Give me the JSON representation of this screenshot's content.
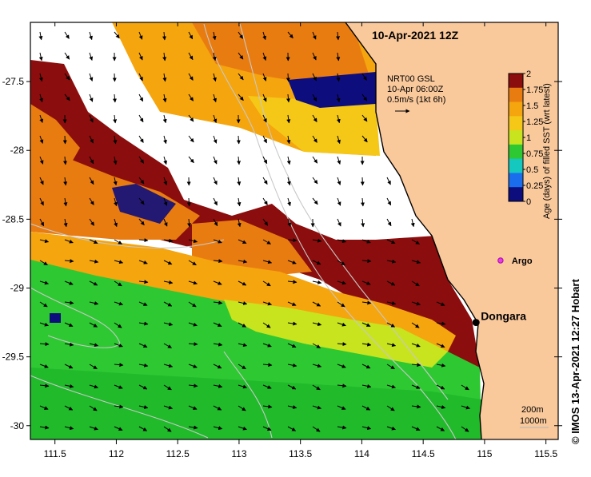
{
  "map": {
    "title": "10-Apr-2021 12Z",
    "credit": "©  IMOS 13-Apr-2021 12:27 Hobart",
    "x_ticks": [
      "111.5",
      "112",
      "112.5",
      "113",
      "113.5",
      "114",
      "114.5",
      "115",
      "115.5"
    ],
    "y_ticks": [
      "-27.5",
      "-28",
      "-28.5",
      "-29",
      "-29.5",
      "-30"
    ],
    "x_range": [
      111.3,
      115.6
    ],
    "y_range": [
      -27.07,
      -30.1
    ],
    "places": [
      {
        "name": "Dongara",
        "lon": 114.93,
        "lat": -29.25
      },
      {
        "name": "Argo",
        "lon": 115.13,
        "lat": -28.8
      }
    ],
    "current_legend": {
      "line1": "NRT00 GSL",
      "line2": "10-Apr 06:00Z",
      "line3": "0.5m/s (1kt 6h)"
    },
    "contour_legend": {
      "line1": "200m",
      "line2": "1000m"
    }
  },
  "colorbar": {
    "label": "Age (days) of filled SST (wrt latest)",
    "ticks": [
      "2",
      "1.75",
      "1.5",
      "1.25",
      "1",
      "0.75",
      "0.5",
      "0.25",
      "0"
    ],
    "colors": [
      "#8b0d0d",
      "#e97c10",
      "#f5a50e",
      "#f5c818",
      "#c8e41e",
      "#2ec832",
      "#14c8c0",
      "#1a6eee",
      "#0d0d7d"
    ]
  }
}
